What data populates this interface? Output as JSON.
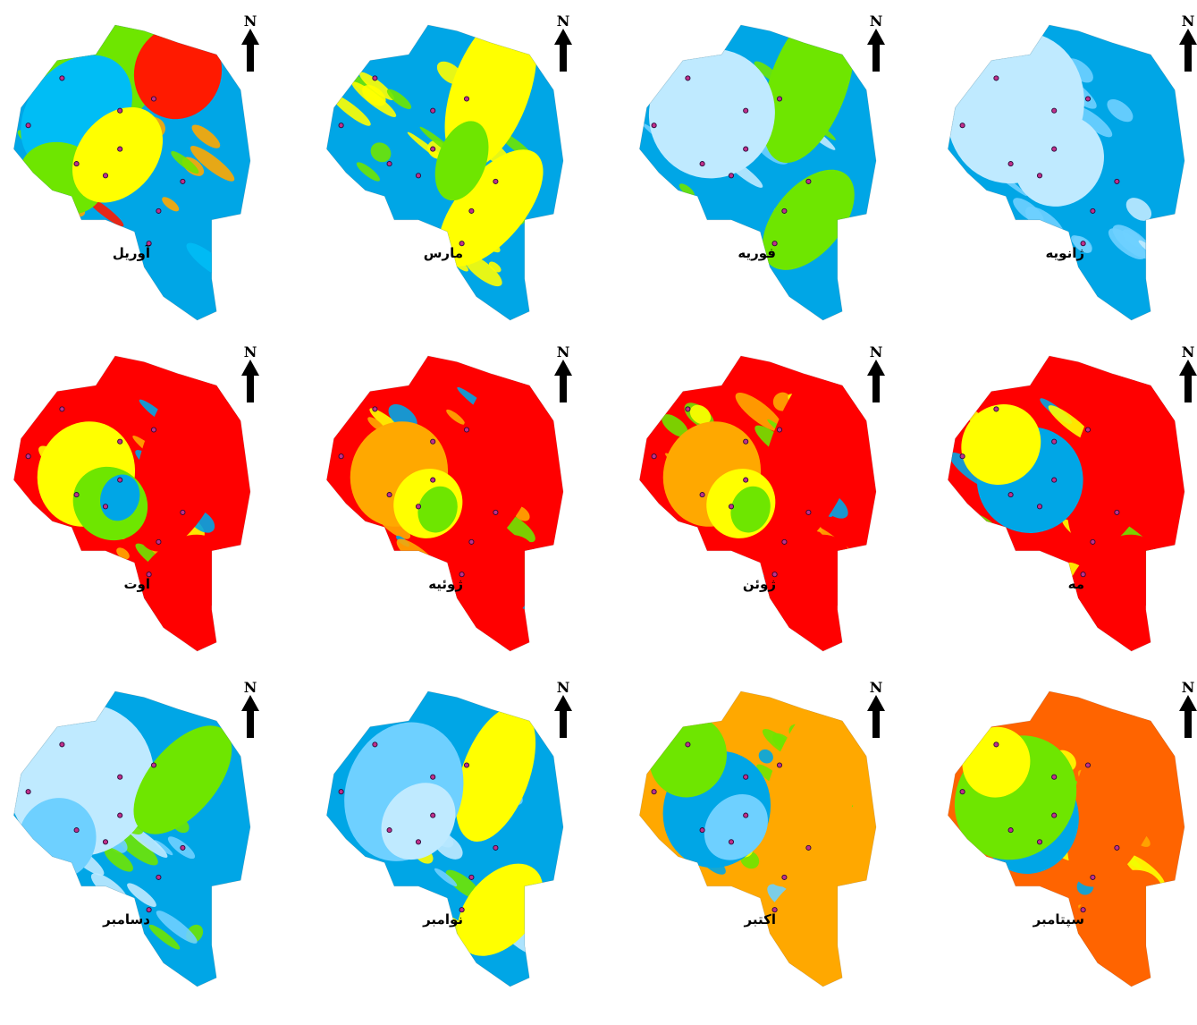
{
  "figure": {
    "north_label": "N",
    "panels": [
      {
        "id": "april",
        "label": "آوریل",
        "row": 0,
        "col": 0,
        "palette": [
          "#00a6e6",
          "#6ee600",
          "#ffa800",
          "#00bdf5",
          "#ff1a00"
        ],
        "zones": [
          [
            0.4,
            0.08,
            0.26,
            0.3,
            "#6ee600"
          ],
          [
            0.28,
            0.3,
            0.2,
            0.22,
            "#00bdf5"
          ],
          [
            0.22,
            0.52,
            0.18,
            0.12,
            "#6ee600"
          ],
          [
            0.45,
            0.44,
            0.16,
            0.18,
            "#ffff00"
          ],
          [
            0.7,
            0.16,
            0.18,
            0.16,
            "#ff1a00"
          ]
        ]
      },
      {
        "id": "march",
        "label": "مارس",
        "row": 0,
        "col": 1,
        "palette": [
          "#00a6e6",
          "#ffff00",
          "#6ee600"
        ],
        "zones": [
          [
            0.7,
            0.22,
            0.16,
            0.28,
            "#ffff00"
          ],
          [
            0.7,
            0.62,
            0.14,
            0.24,
            "#ffff00"
          ],
          [
            0.58,
            0.46,
            0.1,
            0.14,
            "#6ee600"
          ]
        ]
      },
      {
        "id": "february",
        "label": "فوریه",
        "row": 0,
        "col": 2,
        "palette": [
          "#00a6e6",
          "#6ed0ff",
          "#6ee600",
          "#bfeaff"
        ],
        "zones": [
          [
            0.72,
            0.2,
            0.16,
            0.28,
            "#6ee600"
          ],
          [
            0.72,
            0.66,
            0.14,
            0.2,
            "#6ee600"
          ],
          [
            0.32,
            0.3,
            0.26,
            0.22,
            "#bfeaff"
          ]
        ]
      },
      {
        "id": "january",
        "label": "ژانویه",
        "row": 0,
        "col": 3,
        "palette": [
          "#00a6e6",
          "#bfeaff",
          "#6ed0ff"
        ],
        "zones": [
          [
            0.3,
            0.28,
            0.28,
            0.26,
            "#bfeaff"
          ],
          [
            0.48,
            0.46,
            0.18,
            0.16,
            "#bfeaff"
          ]
        ]
      },
      {
        "id": "august",
        "label": "اوت",
        "row": 1,
        "col": 0,
        "palette": [
          "#ff0000",
          "#ffa800",
          "#ffff00",
          "#6ee600",
          "#00a6e6"
        ],
        "zones": [
          [
            0.74,
            0.32,
            0.18,
            0.36,
            "#ff0000"
          ],
          [
            0.7,
            0.78,
            0.16,
            0.2,
            "#ff0000"
          ],
          [
            0.32,
            0.4,
            0.2,
            0.18,
            "#ffff00"
          ],
          [
            0.42,
            0.5,
            0.16,
            0.12,
            "#6ee600"
          ],
          [
            0.46,
            0.48,
            0.08,
            0.08,
            "#00a6e6"
          ]
        ]
      },
      {
        "id": "july",
        "label": "ژوئیه",
        "row": 1,
        "col": 1,
        "palette": [
          "#ff0000",
          "#ffa800",
          "#ffff00",
          "#6ee600",
          "#00a6e6"
        ],
        "zones": [
          [
            0.74,
            0.32,
            0.18,
            0.36,
            "#ff0000"
          ],
          [
            0.7,
            0.78,
            0.16,
            0.2,
            "#ff0000"
          ],
          [
            0.32,
            0.4,
            0.2,
            0.18,
            "#ffa800"
          ],
          [
            0.44,
            0.5,
            0.14,
            0.12,
            "#ffff00"
          ],
          [
            0.48,
            0.52,
            0.08,
            0.08,
            "#6ee600"
          ]
        ]
      },
      {
        "id": "june",
        "label": "ژوئن",
        "row": 1,
        "col": 2,
        "palette": [
          "#ff0000",
          "#ffa800",
          "#ffff00",
          "#6ee600",
          "#00a6e6"
        ],
        "zones": [
          [
            0.74,
            0.32,
            0.18,
            0.36,
            "#ff0000"
          ],
          [
            0.7,
            0.78,
            0.16,
            0.2,
            "#ff0000"
          ],
          [
            0.32,
            0.4,
            0.2,
            0.18,
            "#ffa800"
          ],
          [
            0.44,
            0.5,
            0.14,
            0.12,
            "#ffff00"
          ],
          [
            0.48,
            0.52,
            0.08,
            0.08,
            "#6ee600"
          ]
        ]
      },
      {
        "id": "may",
        "label": "مه",
        "row": 1,
        "col": 3,
        "palette": [
          "#ff0000",
          "#ffff00",
          "#6ee600",
          "#00a6e6",
          "#ffa800"
        ],
        "zones": [
          [
            0.74,
            0.32,
            0.18,
            0.36,
            "#ff0000"
          ],
          [
            0.7,
            0.78,
            0.16,
            0.2,
            "#ff0000"
          ],
          [
            0.36,
            0.42,
            0.22,
            0.18,
            "#00a6e6"
          ],
          [
            0.24,
            0.3,
            0.16,
            0.14,
            "#ffff00"
          ]
        ]
      },
      {
        "id": "december",
        "label": "دسامبر",
        "row": 2,
        "col": 0,
        "palette": [
          "#00a6e6",
          "#bfeaff",
          "#6ed0ff",
          "#6ee600"
        ],
        "zones": [
          [
            0.3,
            0.3,
            0.3,
            0.26,
            "#bfeaff"
          ],
          [
            0.72,
            0.3,
            0.14,
            0.22,
            "#6ee600"
          ],
          [
            0.2,
            0.5,
            0.16,
            0.14,
            "#6ed0ff"
          ]
        ]
      },
      {
        "id": "november",
        "label": "نوامبر",
        "row": 2,
        "col": 1,
        "palette": [
          "#00a6e6",
          "#6ed0ff",
          "#6ee600",
          "#ffff00",
          "#bfeaff"
        ],
        "zones": [
          [
            0.72,
            0.28,
            0.14,
            0.24,
            "#ffff00"
          ],
          [
            0.74,
            0.74,
            0.14,
            0.18,
            "#ffff00"
          ],
          [
            0.34,
            0.34,
            0.24,
            0.24,
            "#6ed0ff"
          ],
          [
            0.4,
            0.44,
            0.14,
            0.14,
            "#bfeaff"
          ]
        ]
      },
      {
        "id": "october",
        "label": "اکتبر",
        "row": 2,
        "col": 2,
        "palette": [
          "#ffa800",
          "#ffff00",
          "#6ee600",
          "#00a6e6",
          "#6ed0ff"
        ],
        "zones": [
          [
            0.74,
            0.32,
            0.18,
            0.36,
            "#ffa800"
          ],
          [
            0.72,
            0.78,
            0.16,
            0.2,
            "#ffa800"
          ],
          [
            0.34,
            0.4,
            0.22,
            0.2,
            "#00a6e6"
          ],
          [
            0.42,
            0.46,
            0.12,
            0.12,
            "#6ed0ff"
          ],
          [
            0.22,
            0.22,
            0.16,
            0.14,
            "#6ee600"
          ]
        ]
      },
      {
        "id": "september",
        "label": "سپتامبر",
        "row": 2,
        "col": 3,
        "palette": [
          "#ff6400",
          "#ffa800",
          "#ffff00",
          "#6ee600",
          "#00a6e6"
        ],
        "zones": [
          [
            0.74,
            0.32,
            0.18,
            0.36,
            "#ff6400"
          ],
          [
            0.72,
            0.78,
            0.16,
            0.2,
            "#ff6400"
          ],
          [
            0.36,
            0.44,
            0.2,
            0.18,
            "#00a6e6"
          ],
          [
            0.3,
            0.36,
            0.24,
            0.22,
            "#6ee600"
          ],
          [
            0.22,
            0.24,
            0.14,
            0.12,
            "#ffff00"
          ]
        ]
      }
    ]
  }
}
